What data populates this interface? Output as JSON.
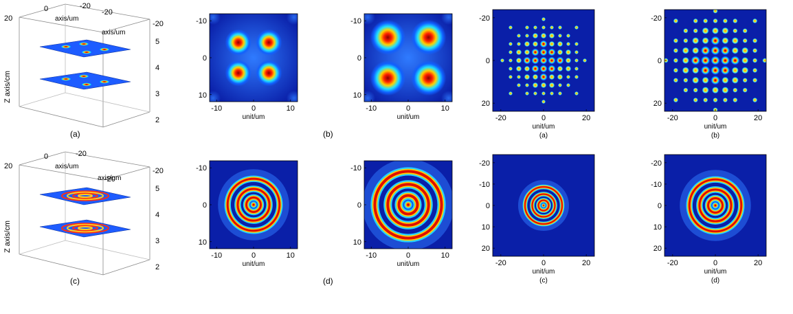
{
  "figure": {
    "panels_3d": [
      {
        "id": "a3d",
        "label": "(a)",
        "pattern": "quad",
        "x_ticks": [
          "0",
          "-20"
        ],
        "y_ticks": [
          "20",
          "-20"
        ],
        "z_ticks": [
          "5",
          "4",
          "3",
          "2"
        ],
        "x_label": "axis/um",
        "y_label": "axis/um",
        "z_label": "Z axis/cm"
      },
      {
        "id": "c3d",
        "label": "(c)",
        "pattern": "rings",
        "x_ticks": [
          "0",
          "-20"
        ],
        "y_ticks": [
          "20",
          "-20"
        ],
        "z_ticks": [
          "5",
          "4",
          "3",
          "2"
        ],
        "x_label": "axis/um",
        "y_label": "axis/um",
        "z_label": "Z axis/cm"
      }
    ],
    "panels_2d": [
      {
        "id": "b1",
        "pattern": "quad",
        "spread": 6,
        "x_ticks": [
          "-10",
          "0",
          "10"
        ],
        "y_ticks": [
          "-10",
          "0",
          "10"
        ],
        "xlabel": "unit/um",
        "label": ""
      },
      {
        "id": "b2",
        "pattern": "quad",
        "spread": 8,
        "x_ticks": [
          "-10",
          "0",
          "10"
        ],
        "y_ticks": [
          "-10",
          "0",
          "10"
        ],
        "xlabel": "unit/um",
        "label": ""
      },
      {
        "id": "a2",
        "pattern": "lattice",
        "spread": 5,
        "x_ticks": [
          "-20",
          "0",
          "20"
        ],
        "y_ticks": [
          "-20",
          "0",
          "20"
        ],
        "xlabel": "unit/um",
        "label": "(a)"
      },
      {
        "id": "b3",
        "pattern": "lattice",
        "spread": 6,
        "x_ticks": [
          "-20",
          "0",
          "20"
        ],
        "y_ticks": [
          "-20",
          "0",
          "20"
        ],
        "xlabel": "unit/um",
        "label": "(b)"
      },
      {
        "id": "d1",
        "pattern": "rings",
        "spread": 7,
        "x_ticks": [
          "-10",
          "0",
          "10"
        ],
        "y_ticks": [
          "-10",
          "0",
          "10"
        ],
        "xlabel": "unit/um",
        "label": ""
      },
      {
        "id": "d2",
        "pattern": "rings",
        "spread": 9,
        "x_ticks": [
          "-10",
          "0",
          "10"
        ],
        "y_ticks": [
          "-10",
          "0",
          "10"
        ],
        "xlabel": "unit/um",
        "label": ""
      },
      {
        "id": "c2",
        "pattern": "rings",
        "spread": 5,
        "x_ticks": [
          "-20",
          "0",
          "20"
        ],
        "y_ticks": [
          "-20",
          "-10",
          "0",
          "10",
          "20"
        ],
        "xlabel": "unit/um",
        "label": "(c)"
      },
      {
        "id": "d3",
        "pattern": "rings",
        "spread": 7,
        "x_ticks": [
          "-20",
          "0",
          "20"
        ],
        "y_ticks": [
          "-20",
          "-10",
          "0",
          "10",
          "20"
        ],
        "xlabel": "unit/um",
        "label": "(d)"
      }
    ],
    "group_labels": {
      "b": "(b)",
      "d": "(d)"
    }
  },
  "chart_data": [
    {
      "type": "heatmap",
      "id": "b1",
      "x_ticks": [
        -10,
        0,
        10
      ],
      "y_ticks": [
        -10,
        0,
        10
      ],
      "xlabel": "unit/um",
      "colormap": "jet"
    },
    {
      "type": "heatmap",
      "id": "b2",
      "x_ticks": [
        -10,
        0,
        10
      ],
      "y_ticks": [
        -10,
        0,
        10
      ],
      "xlabel": "unit/um",
      "colormap": "jet"
    },
    {
      "type": "heatmap",
      "id": "a2",
      "x_ticks": [
        -20,
        0,
        20
      ],
      "y_ticks": [
        -20,
        0,
        20
      ],
      "xlabel": "unit/um",
      "colormap": "jet"
    },
    {
      "type": "heatmap",
      "id": "b3",
      "x_ticks": [
        -20,
        0,
        20
      ],
      "y_ticks": [
        -20,
        0,
        20
      ],
      "xlabel": "unit/um",
      "colormap": "jet"
    },
    {
      "type": "heatmap",
      "id": "d1",
      "x_ticks": [
        -10,
        0,
        10
      ],
      "y_ticks": [
        -10,
        0,
        10
      ],
      "xlabel": "unit/um",
      "colormap": "jet"
    },
    {
      "type": "heatmap",
      "id": "d2",
      "x_ticks": [
        -10,
        0,
        10
      ],
      "y_ticks": [
        -10,
        0,
        10
      ],
      "xlabel": "unit/um",
      "colormap": "jet"
    },
    {
      "type": "heatmap",
      "id": "c2",
      "x_ticks": [
        -20,
        0,
        20
      ],
      "y_ticks": [
        -20,
        -10,
        0,
        10,
        20
      ],
      "xlabel": "unit/um",
      "colormap": "jet"
    },
    {
      "type": "heatmap",
      "id": "d3",
      "x_ticks": [
        -20,
        0,
        20
      ],
      "y_ticks": [
        -20,
        -10,
        0,
        10,
        20
      ],
      "xlabel": "unit/um",
      "colormap": "jet"
    }
  ]
}
